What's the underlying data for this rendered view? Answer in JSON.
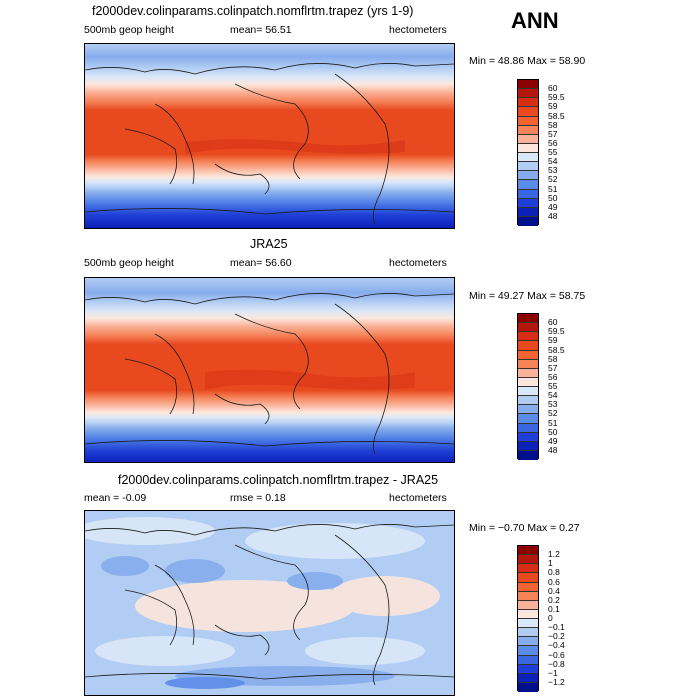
{
  "season": "ANN",
  "panels": [
    {
      "title": "f2000dev.colinparams.colinpatch.nomflrtm.trapez (yrs 1-9)",
      "left_label": "500mb geop height",
      "center_label": "mean=   56.51",
      "right_label": "hectometers",
      "minmax": "Min =   48.86 Max =   58.90",
      "colorbar": {
        "levels": [
          "60",
          "59.5",
          "59",
          "58.5",
          "58",
          "57",
          "56",
          "55",
          "54",
          "53",
          "52",
          "51",
          "50",
          "49",
          "48"
        ],
        "colors": [
          "#8b0000",
          "#b5170b",
          "#d62f15",
          "#e8491f",
          "#f26432",
          "#f6845a",
          "#f9b39a",
          "#fde7dc",
          "#dbe8f8",
          "#b2cdf3",
          "#86aced",
          "#5b8be8",
          "#3a66e0",
          "#1f3fd6",
          "#0b21b8",
          "#000f8a"
        ]
      }
    },
    {
      "title": "JRA25",
      "left_label": "500mb geop height",
      "center_label": "mean=   56.60",
      "right_label": "hectometers",
      "minmax": "Min =   49.27 Max =   58.75",
      "colorbar": {
        "levels": [
          "60",
          "59.5",
          "59",
          "58.5",
          "58",
          "57",
          "56",
          "55",
          "54",
          "53",
          "52",
          "51",
          "50",
          "49",
          "48"
        ],
        "colors": [
          "#8b0000",
          "#b5170b",
          "#d62f15",
          "#e8491f",
          "#f26432",
          "#f6845a",
          "#f9b39a",
          "#fde7dc",
          "#dbe8f8",
          "#b2cdf3",
          "#86aced",
          "#5b8be8",
          "#3a66e0",
          "#1f3fd6",
          "#0b21b8",
          "#000f8a"
        ]
      }
    },
    {
      "title": "f2000dev.colinparams.colinpatch.nomflrtm.trapez - JRA25",
      "left_label": "mean =   -0.09",
      "center_label": "rmse =    0.18",
      "right_label": "hectometers",
      "minmax": "Min =  −0.70 Max =    0.27",
      "colorbar": {
        "levels": [
          "1.2",
          "1",
          "0.8",
          "0.6",
          "0.4",
          "0.2",
          "0.1",
          "0",
          "−0.1",
          "−0.2",
          "−0.4",
          "−0.6",
          "−0.8",
          "−1",
          "−1.2"
        ],
        "colors": [
          "#8b0000",
          "#b5170b",
          "#d62f15",
          "#e8491f",
          "#f26432",
          "#f6845a",
          "#f9b39a",
          "#fde7dc",
          "#dbe8f8",
          "#b2cdf3",
          "#86aced",
          "#5b8be8",
          "#3a66e0",
          "#1f3fd6",
          "#0b21b8",
          "#000f8a"
        ]
      }
    }
  ]
}
